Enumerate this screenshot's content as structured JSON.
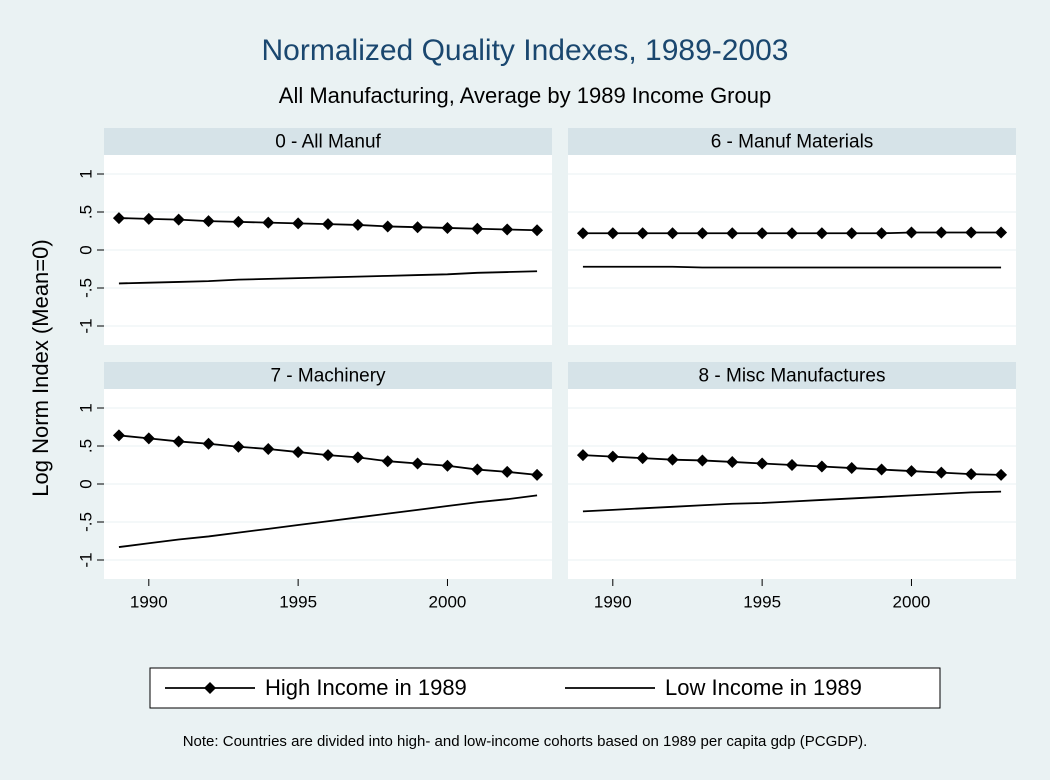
{
  "title": "Normalized Quality Indexes, 1989-2003",
  "subtitle": "All Manufacturing, Average by 1989 Income Group",
  "ylabel": "Log Norm Index (Mean=0)",
  "note": "Note: Countries are divided into high- and low-income cohorts based on 1989 per capita gdp (PCGDP).",
  "chart_data": [
    {
      "type": "line",
      "title": "0 - All Manuf",
      "x": [
        1989,
        1990,
        1991,
        1992,
        1993,
        1994,
        1995,
        1996,
        1997,
        1998,
        1999,
        2000,
        2001,
        2002,
        2003
      ],
      "series": [
        {
          "name": "High Income in 1989",
          "color": "#000000",
          "marker": "diamond",
          "values": [
            0.42,
            0.41,
            0.4,
            0.38,
            0.37,
            0.36,
            0.35,
            0.34,
            0.33,
            0.31,
            0.3,
            0.29,
            0.28,
            0.27,
            0.26
          ]
        },
        {
          "name": "Low Income in 1989",
          "color": "#000000",
          "values": [
            -0.44,
            -0.43,
            -0.42,
            -0.41,
            -0.39,
            -0.38,
            -0.37,
            -0.36,
            -0.35,
            -0.34,
            -0.33,
            -0.32,
            -0.3,
            -0.29,
            -0.28
          ]
        }
      ],
      "xlim": [
        1988.5,
        2003.5
      ],
      "ylim": [
        -1.25,
        1.25
      ],
      "yticks": [
        1,
        {
          "value": 0.5,
          "label": ".5"
        },
        0,
        {
          "value": -0.5,
          "label": "-.5"
        },
        -1
      ],
      "grid": true
    },
    {
      "type": "line",
      "title": "6 - Manuf Materials",
      "x": [
        1989,
        1990,
        1991,
        1992,
        1993,
        1994,
        1995,
        1996,
        1997,
        1998,
        1999,
        2000,
        2001,
        2002,
        2003
      ],
      "series": [
        {
          "name": "High Income in 1989",
          "color": "#000000",
          "marker": "diamond",
          "values": [
            0.22,
            0.22,
            0.22,
            0.22,
            0.22,
            0.22,
            0.22,
            0.22,
            0.22,
            0.22,
            0.22,
            0.23,
            0.23,
            0.23,
            0.23
          ]
        },
        {
          "name": "Low Income in 1989",
          "color": "#000000",
          "values": [
            -0.22,
            -0.22,
            -0.22,
            -0.22,
            -0.23,
            -0.23,
            -0.23,
            -0.23,
            -0.23,
            -0.23,
            -0.23,
            -0.23,
            -0.23,
            -0.23,
            -0.23
          ]
        }
      ],
      "xlim": [
        1988.5,
        2003.5
      ],
      "ylim": [
        -1.25,
        1.25
      ],
      "grid": true
    },
    {
      "type": "line",
      "title": "7 - Machinery",
      "x": [
        1989,
        1990,
        1991,
        1992,
        1993,
        1994,
        1995,
        1996,
        1997,
        1998,
        1999,
        2000,
        2001,
        2002,
        2003
      ],
      "series": [
        {
          "name": "High Income in 1989",
          "color": "#000000",
          "marker": "diamond",
          "values": [
            0.64,
            0.6,
            0.56,
            0.53,
            0.49,
            0.46,
            0.42,
            0.38,
            0.35,
            0.3,
            0.27,
            0.24,
            0.19,
            0.16,
            0.12
          ]
        },
        {
          "name": "Low Income in 1989",
          "color": "#000000",
          "values": [
            -0.83,
            -0.78,
            -0.73,
            -0.69,
            -0.64,
            -0.59,
            -0.54,
            -0.49,
            -0.44,
            -0.39,
            -0.34,
            -0.29,
            -0.24,
            -0.2,
            -0.15
          ]
        }
      ],
      "xlim": [
        1988.5,
        2003.5
      ],
      "ylim": [
        -1.25,
        1.25
      ],
      "xticks": [
        1990,
        1995,
        2000
      ],
      "yticks": [
        1,
        {
          "value": 0.5,
          "label": ".5"
        },
        0,
        {
          "value": -0.5,
          "label": "-.5"
        },
        -1
      ],
      "grid": true
    },
    {
      "type": "line",
      "title": "8 - Misc Manufactures",
      "x": [
        1989,
        1990,
        1991,
        1992,
        1993,
        1994,
        1995,
        1996,
        1997,
        1998,
        1999,
        2000,
        2001,
        2002,
        2003
      ],
      "series": [
        {
          "name": "High Income in 1989",
          "color": "#000000",
          "marker": "diamond",
          "values": [
            0.38,
            0.36,
            0.34,
            0.32,
            0.31,
            0.29,
            0.27,
            0.25,
            0.23,
            0.21,
            0.19,
            0.17,
            0.15,
            0.13,
            0.12
          ]
        },
        {
          "name": "Low Income in 1989",
          "color": "#000000",
          "values": [
            -0.36,
            -0.34,
            -0.32,
            -0.3,
            -0.28,
            -0.26,
            -0.25,
            -0.23,
            -0.21,
            -0.19,
            -0.17,
            -0.15,
            -0.13,
            -0.11,
            -0.1
          ]
        }
      ],
      "xlim": [
        1988.5,
        2003.5
      ],
      "ylim": [
        -1.25,
        1.25
      ],
      "xticks": [
        1990,
        1995,
        2000
      ],
      "grid": true
    }
  ]
}
